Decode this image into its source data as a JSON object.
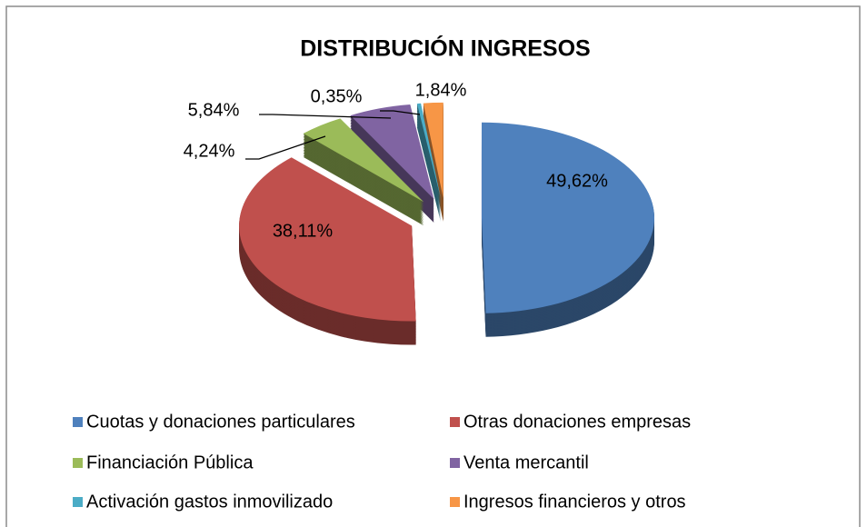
{
  "chart_data": {
    "type": "pie3d",
    "title": "DISTRIBUCIÓN INGRESOS",
    "categories": [
      "Cuotas y donaciones particulares",
      "Otras donaciones empresas",
      "Financiación Pública",
      "Venta mercantil",
      "Activación gastos inmovilizado",
      "Ingresos financieros y otros"
    ],
    "values": [
      49.62,
      38.11,
      4.24,
      5.84,
      0.35,
      1.84
    ],
    "value_labels": [
      "49,62%",
      "38,11%",
      "4,24%",
      "5,84%",
      "0,35%",
      "1,84%"
    ],
    "colors": [
      "#4f81bd",
      "#c0504d",
      "#9bbb59",
      "#8064a2",
      "#4bacc6",
      "#f79646"
    ],
    "legend": "bottom"
  }
}
